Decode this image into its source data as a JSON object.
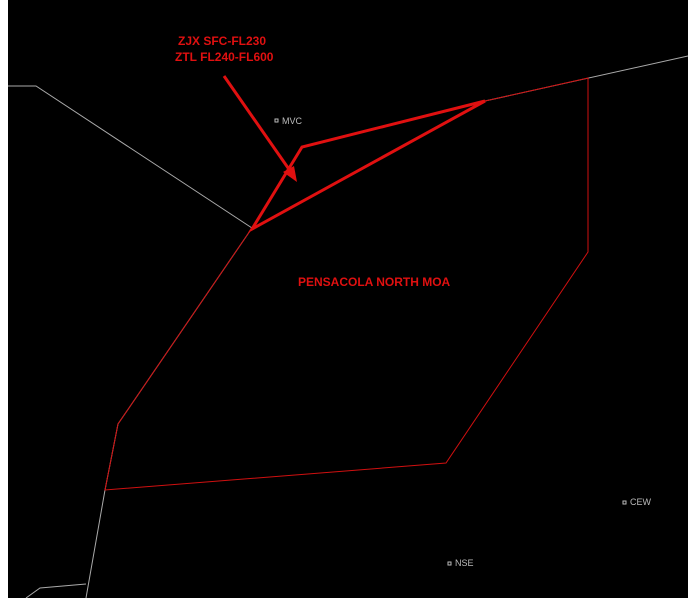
{
  "annotation": {
    "line1": "ZJX SFC-FL230",
    "line2": "ZTL FL240-FL600"
  },
  "area_label": "PENSACOLA NORTH MOA",
  "fixes": [
    {
      "label": "MVC"
    },
    {
      "label": "CEW"
    },
    {
      "label": "NSE"
    }
  ]
}
